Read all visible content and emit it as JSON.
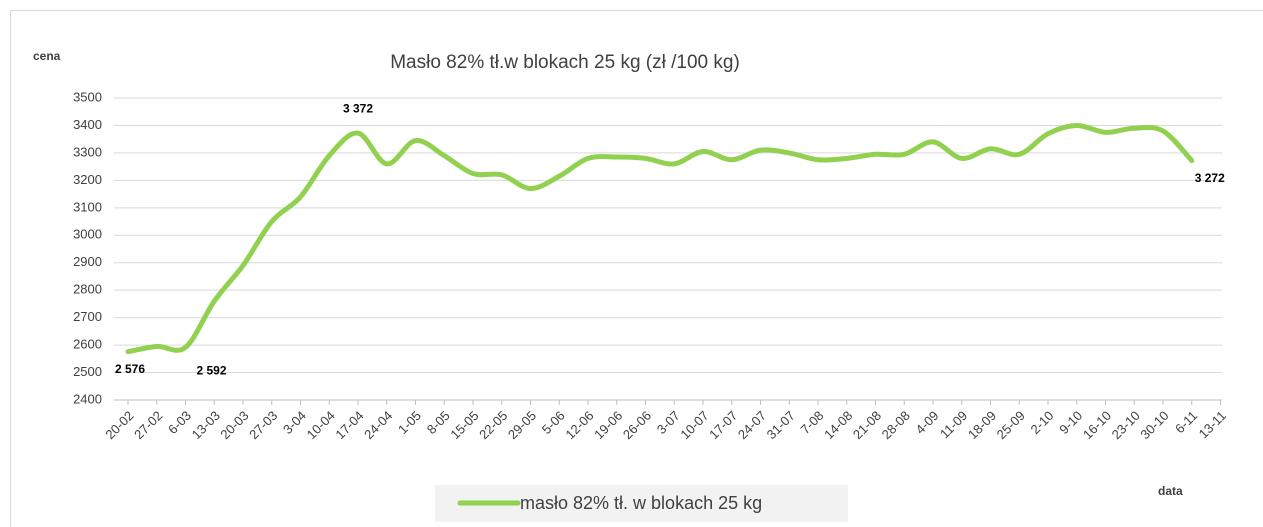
{
  "chart_data": {
    "type": "line",
    "title": "Masło 82% tł.w blokach  25 kg (zł /100 kg)",
    "y_label": "cena",
    "x_label": "data",
    "categories": [
      "20-02",
      "27-02",
      "6-03",
      "13-03",
      "20-03",
      "27-03",
      "3-04",
      "10-04",
      "17-04",
      "24-04",
      "1-05",
      "8-05",
      "15-05",
      "22-05",
      "29-05",
      "5-06",
      "12-06",
      "19-06",
      "26-06",
      "3-07",
      "10-07",
      "17-07",
      "24-07",
      "31-07",
      "7-08",
      "14-08",
      "21-08",
      "28-08",
      "4-09",
      "11-09",
      "18-09",
      "25-09",
      "2-10",
      "9-10",
      "16-10",
      "23-10",
      "30-10",
      "6-11",
      "13-11"
    ],
    "series": [
      {
        "name": "masło 82% tł. w blokach 25 kg",
        "color": "#92d050",
        "values": [
          2576,
          2595,
          2592,
          2760,
          2890,
          3050,
          3140,
          3290,
          3372,
          3260,
          3345,
          3290,
          3225,
          3220,
          3170,
          3215,
          3280,
          3285,
          3280,
          3260,
          3305,
          3275,
          3310,
          3300,
          3275,
          3280,
          3295,
          3295,
          3340,
          3280,
          3315,
          3295,
          3370,
          3400,
          3375,
          3390,
          3380,
          3272,
          null
        ],
        "value_labels": [
          "2 576",
          null,
          "2 592",
          null,
          null,
          null,
          null,
          null,
          "3 372",
          null,
          null,
          null,
          null,
          null,
          null,
          null,
          null,
          null,
          null,
          null,
          null,
          null,
          null,
          null,
          null,
          null,
          null,
          null,
          null,
          null,
          null,
          null,
          null,
          null,
          null,
          null,
          null,
          "3 272",
          null
        ]
      }
    ],
    "ylim": [
      2400,
      3500
    ],
    "yticks": [
      2400,
      2500,
      2600,
      2700,
      2800,
      2900,
      3000,
      3100,
      3200,
      3300,
      3400,
      3500
    ],
    "grid": true,
    "legend": "bottom"
  }
}
